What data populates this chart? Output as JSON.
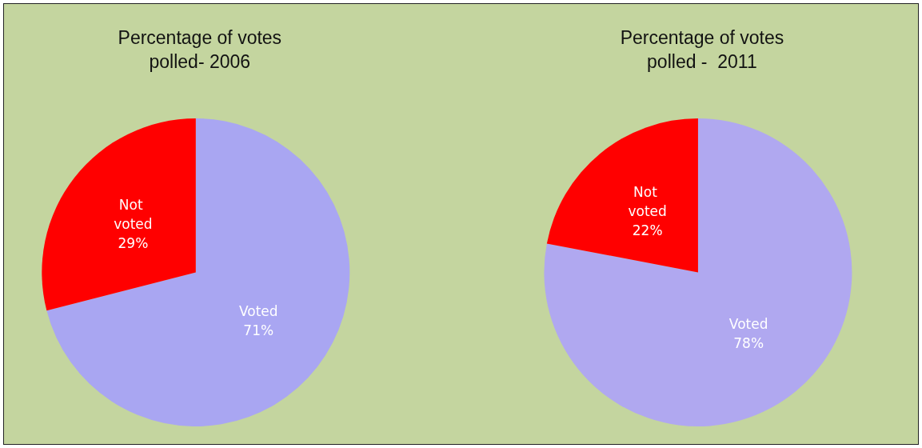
{
  "chart_data": [
    {
      "type": "pie",
      "title": "Percentage of votes\npolled- 2006",
      "categories": [
        "Voted",
        "Not voted"
      ],
      "values": [
        71,
        29
      ],
      "colors": [
        "#a9a6f2",
        "#ff0000"
      ],
      "value_labels": [
        "71%",
        "29%"
      ]
    },
    {
      "type": "pie",
      "title": "Percentage of votes\npolled -  2011",
      "categories": [
        "Voted",
        "Not voted"
      ],
      "values": [
        78,
        22
      ],
      "colors": [
        "#b0a8f0",
        "#ff0000"
      ],
      "value_labels": [
        "78%",
        "22%"
      ]
    }
  ]
}
